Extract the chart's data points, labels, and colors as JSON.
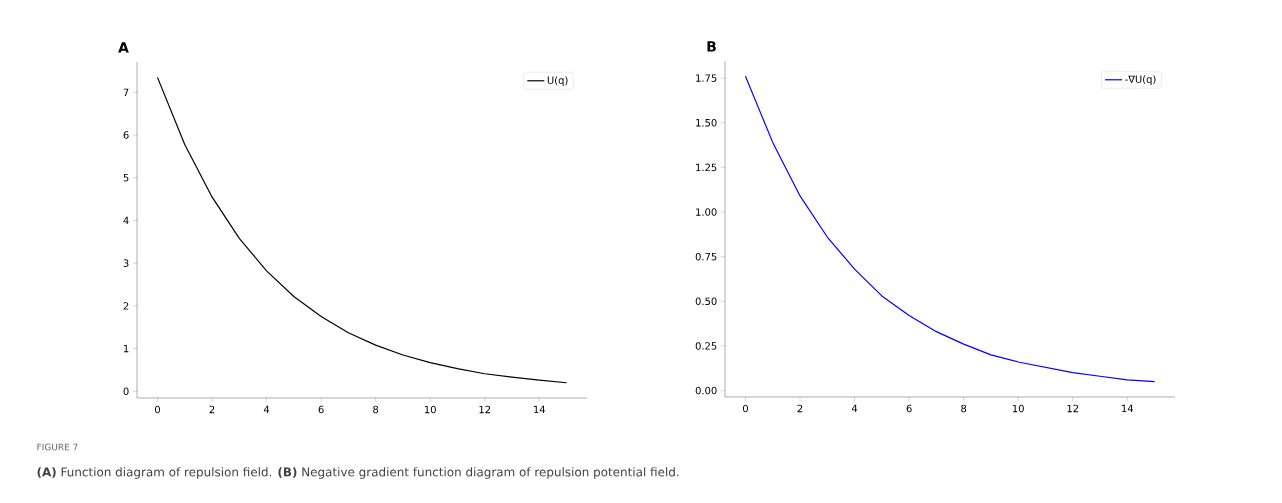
{
  "chart_data": [
    {
      "type": "line",
      "title": "A",
      "x": [
        0,
        1,
        2,
        3,
        4,
        5,
        6,
        7,
        8,
        9,
        10,
        11,
        12,
        13,
        14,
        15
      ],
      "series": [
        {
          "name": "U(q)",
          "color": "#000000",
          "values": [
            7.35,
            5.78,
            4.55,
            3.58,
            2.82,
            2.22,
            1.75,
            1.37,
            1.08,
            0.85,
            0.67,
            0.53,
            0.41,
            0.33,
            0.26,
            0.2
          ]
        }
      ],
      "xlim": [
        -0.75,
        15.75
      ],
      "ylim": [
        -0.157,
        7.71
      ],
      "xticks": [
        0,
        2,
        4,
        6,
        8,
        10,
        12,
        14
      ],
      "yticks": [
        0,
        1,
        2,
        3,
        4,
        5,
        6,
        7
      ],
      "legend": "top right",
      "annotations": [
        "FIGURE 7",
        "**(A)** Function diagram of repulsion field. **(B)** Negative gradient function diagram of repulsion potential field."
      ]
    },
    {
      "type": "line",
      "title": "B",
      "x": [
        0,
        1,
        2,
        3,
        4,
        5,
        6,
        7,
        8,
        9,
        10,
        11,
        12,
        13,
        14,
        15
      ],
      "series": [
        {
          "name": "-∇U(q)",
          "color": "#0000ff",
          "values": [
            1.76,
            1.39,
            1.09,
            0.86,
            0.68,
            0.53,
            0.42,
            0.33,
            0.26,
            0.2,
            0.16,
            0.13,
            0.1,
            0.08,
            0.06,
            0.05
          ]
        }
      ],
      "xlim": [
        -0.75,
        15.75
      ],
      "ylim": [
        -0.036,
        1.846
      ],
      "xticks": [
        0,
        2,
        4,
        6,
        8,
        10,
        12,
        14
      ],
      "yticks": [
        {
          "value": 0,
          "label": "0.00"
        },
        {
          "value": 0.25,
          "label": "0.25"
        },
        {
          "value": 0.5,
          "label": "0.50"
        },
        {
          "value": 0.75,
          "label": "0.75"
        },
        {
          "value": 1,
          "label": "1.00"
        },
        {
          "value": 1.25,
          "label": "1.25"
        },
        {
          "value": 1.5,
          "label": "1.50"
        },
        {
          "value": 1.75,
          "label": "1.75"
        }
      ],
      "legend": "top right"
    }
  ]
}
